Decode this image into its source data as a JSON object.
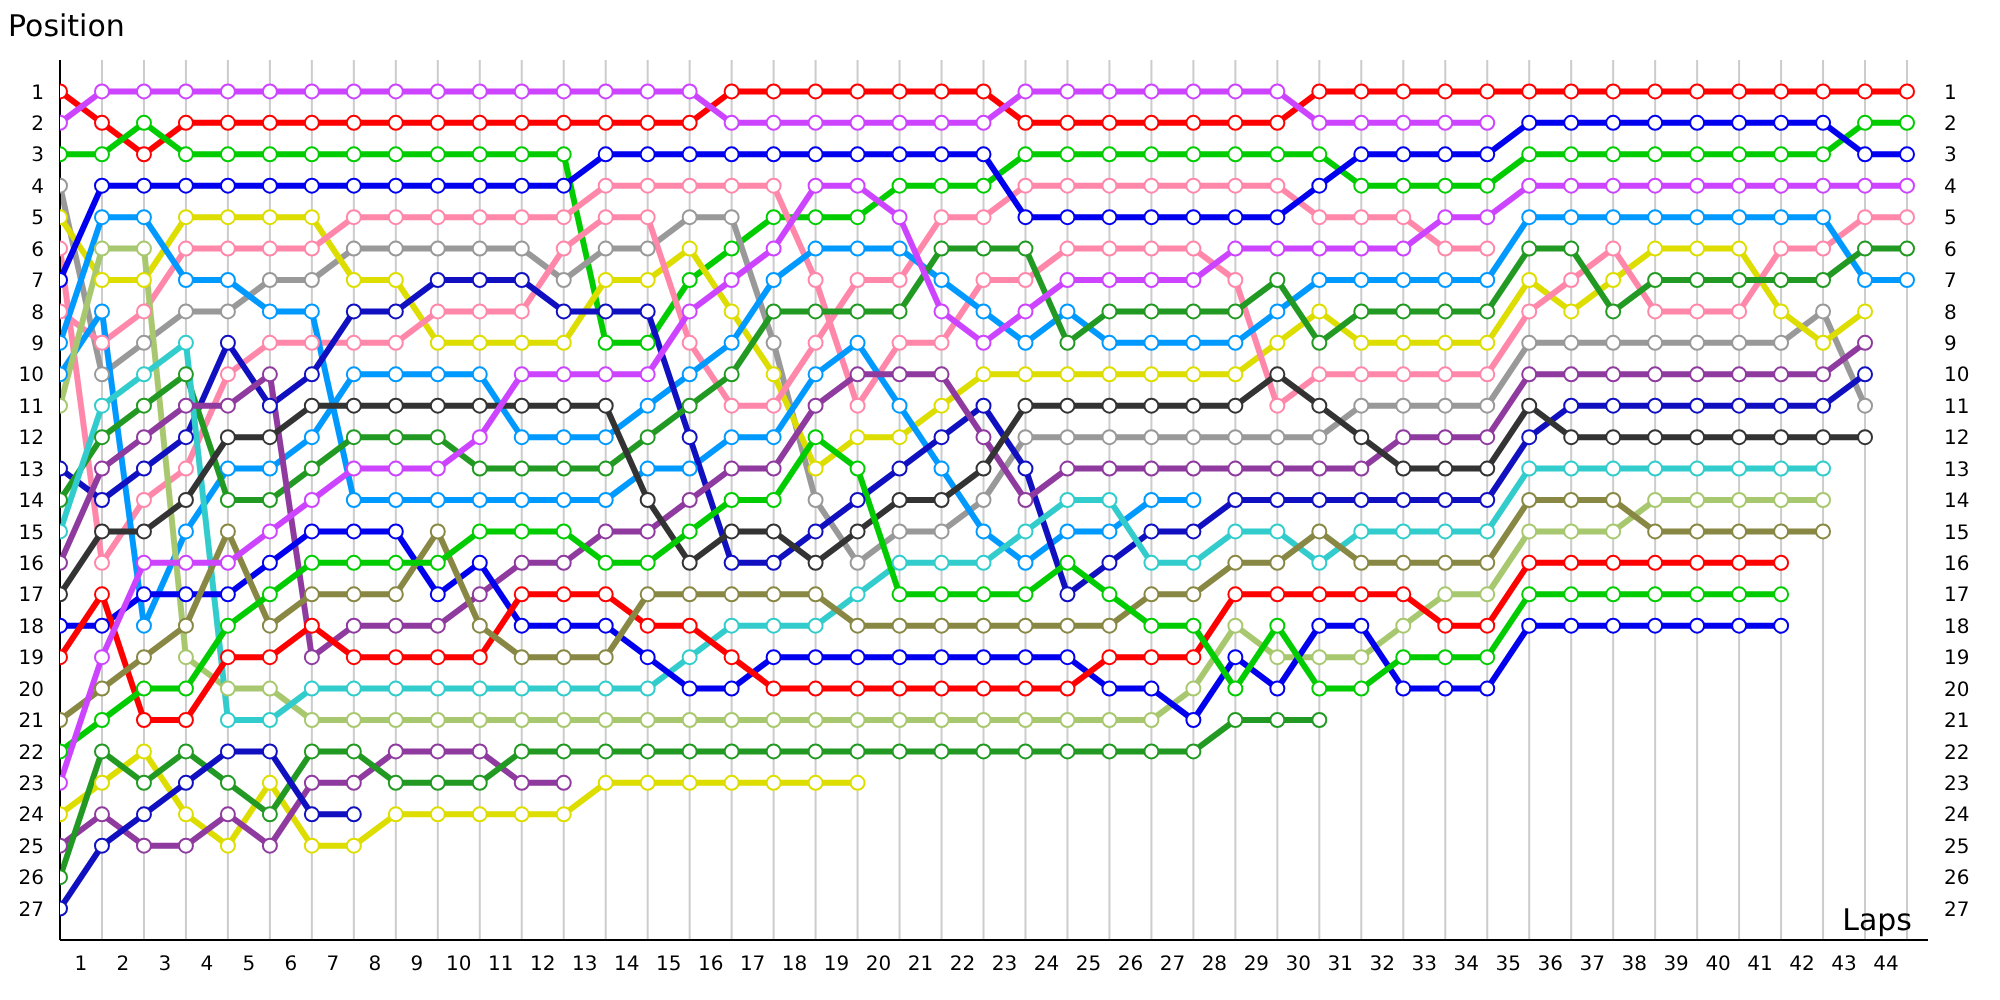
{
  "chart_data": {
    "type": "line",
    "xlabel": "Laps",
    "ylabel": "Position",
    "marker": "circle",
    "line_style": "solid",
    "grid": true,
    "x": [
      0,
      1,
      2,
      3,
      4,
      5,
      6,
      7,
      8,
      9,
      10,
      11,
      12,
      13,
      14,
      15,
      16,
      17,
      18,
      19,
      20,
      21,
      22,
      23,
      24,
      25,
      26,
      27,
      28,
      29,
      30,
      31,
      32,
      33,
      34,
      35,
      36,
      37,
      38,
      39,
      40,
      41,
      42,
      43,
      44
    ],
    "xlim": [
      0,
      44.5
    ],
    "xticks": [
      {
        "value": 0,
        "label": null
      },
      {
        "value": 0.5,
        "label": "1"
      },
      {
        "value": 1,
        "label": null
      },
      {
        "value": 1.5,
        "label": "2"
      },
      {
        "value": 2,
        "label": null
      },
      {
        "value": 2.5,
        "label": "3"
      },
      {
        "value": 3,
        "label": null
      },
      {
        "value": 3.5,
        "label": "4"
      },
      {
        "value": 4,
        "label": null
      },
      {
        "value": 4.5,
        "label": "5"
      },
      {
        "value": 5,
        "label": null
      },
      {
        "value": 5.5,
        "label": "6"
      },
      {
        "value": 6,
        "label": null
      },
      {
        "value": 6.5,
        "label": "7"
      },
      {
        "value": 7,
        "label": null
      },
      {
        "value": 7.5,
        "label": "8"
      },
      {
        "value": 8,
        "label": null
      },
      {
        "value": 8.5,
        "label": "9"
      },
      {
        "value": 9,
        "label": null
      },
      {
        "value": 9.5,
        "label": "10"
      },
      {
        "value": 10,
        "label": null
      },
      {
        "value": 10.5,
        "label": "11"
      },
      {
        "value": 11,
        "label": null
      },
      {
        "value": 11.5,
        "label": "12"
      },
      {
        "value": 12,
        "label": null
      },
      {
        "value": 12.5,
        "label": "13"
      },
      {
        "value": 13,
        "label": null
      },
      {
        "value": 13.5,
        "label": "14"
      },
      {
        "value": 14,
        "label": null
      },
      {
        "value": 14.5,
        "label": "15"
      },
      {
        "value": 15,
        "label": null
      },
      {
        "value": 15.5,
        "label": "16"
      },
      {
        "value": 16,
        "label": null
      },
      {
        "value": 16.5,
        "label": "17"
      },
      {
        "value": 17,
        "label": null
      },
      {
        "value": 17.5,
        "label": "18"
      },
      {
        "value": 18,
        "label": null
      },
      {
        "value": 18.5,
        "label": "19"
      },
      {
        "value": 19,
        "label": null
      },
      {
        "value": 19.5,
        "label": "20"
      },
      {
        "value": 20,
        "label": null
      },
      {
        "value": 20.5,
        "label": "21"
      },
      {
        "value": 21,
        "label": null
      },
      {
        "value": 21.5,
        "label": "22"
      },
      {
        "value": 22,
        "label": null
      },
      {
        "value": 22.5,
        "label": "23"
      },
      {
        "value": 23,
        "label": null
      },
      {
        "value": 23.5,
        "label": "24"
      },
      {
        "value": 24,
        "label": null
      },
      {
        "value": 24.5,
        "label": "25"
      },
      {
        "value": 25,
        "label": null
      },
      {
        "value": 25.5,
        "label": "26"
      },
      {
        "value": 26,
        "label": null
      },
      {
        "value": 26.5,
        "label": "27"
      },
      {
        "value": 27,
        "label": null
      },
      {
        "value": 27.5,
        "label": "28"
      },
      {
        "value": 28,
        "label": null
      },
      {
        "value": 28.5,
        "label": "29"
      },
      {
        "value": 29,
        "label": null
      },
      {
        "value": 29.5,
        "label": "30"
      },
      {
        "value": 30,
        "label": null
      },
      {
        "value": 30.5,
        "label": "31"
      },
      {
        "value": 31,
        "label": null
      },
      {
        "value": 31.5,
        "label": "32"
      },
      {
        "value": 32,
        "label": null
      },
      {
        "value": 32.5,
        "label": "33"
      },
      {
        "value": 33,
        "label": null
      },
      {
        "value": 33.5,
        "label": "34"
      },
      {
        "value": 34,
        "label": null
      },
      {
        "value": 34.5,
        "label": "35"
      },
      {
        "value": 35,
        "label": null
      },
      {
        "value": 35.5,
        "label": "36"
      },
      {
        "value": 36,
        "label": null
      },
      {
        "value": 36.5,
        "label": "37"
      },
      {
        "value": 37,
        "label": null
      },
      {
        "value": 37.5,
        "label": "38"
      },
      {
        "value": 38,
        "label": null
      },
      {
        "value": 38.5,
        "label": "39"
      },
      {
        "value": 39,
        "label": null
      },
      {
        "value": 39.5,
        "label": "40"
      },
      {
        "value": 40,
        "label": null
      },
      {
        "value": 40.5,
        "label": "41"
      },
      {
        "value": 41,
        "label": null
      },
      {
        "value": 41.5,
        "label": "42"
      },
      {
        "value": 42,
        "label": null
      },
      {
        "value": 42.5,
        "label": "43"
      },
      {
        "value": 43,
        "label": null
      },
      {
        "value": 43.5,
        "label": "44"
      },
      {
        "value": 44,
        "label": null
      }
    ],
    "ylim": [
      28,
      0
    ],
    "yticks": [
      1,
      2,
      3,
      4,
      5,
      6,
      7,
      8,
      9,
      10,
      11,
      12,
      13,
      14,
      15,
      16,
      17,
      18,
      19,
      20,
      21,
      22,
      23,
      24,
      25,
      26,
      27
    ],
    "y2lim": [
      28,
      0
    ],
    "y2ticks": [
      1,
      2,
      3,
      4,
      5,
      6,
      7,
      8,
      9,
      10,
      11,
      12,
      13,
      14,
      15,
      16,
      17,
      18,
      19,
      20,
      21,
      22,
      23,
      24,
      25,
      26,
      27
    ],
    "series": [
      {
        "color": "#ff0000",
        "values": [
          1,
          2,
          3,
          2,
          2,
          2,
          2,
          2,
          2,
          2,
          2,
          2,
          2,
          2,
          2,
          2,
          1,
          1,
          1,
          1,
          1,
          1,
          1,
          2,
          2,
          2,
          2,
          2,
          2,
          2,
          1,
          1,
          1,
          1,
          1,
          1,
          1,
          1,
          1,
          1,
          1,
          1,
          1,
          1,
          1
        ]
      },
      {
        "color": "#cc44ff",
        "values": [
          2,
          1,
          1,
          1,
          1,
          1,
          1,
          1,
          1,
          1,
          1,
          1,
          1,
          1,
          1,
          1,
          2,
          2,
          2,
          2,
          2,
          2,
          2,
          1,
          1,
          1,
          1,
          1,
          1,
          1,
          2,
          2,
          2,
          2,
          2,
          null,
          null,
          null,
          null,
          null,
          null,
          null,
          null,
          null,
          null
        ]
      },
      {
        "color": "#00cc00",
        "values": [
          3,
          3,
          2,
          3,
          3,
          3,
          3,
          3,
          3,
          3,
          3,
          3,
          3,
          9,
          9,
          7,
          6,
          5,
          5,
          5,
          4,
          4,
          4,
          3,
          3,
          3,
          3,
          3,
          3,
          3,
          3,
          4,
          4,
          4,
          4,
          3,
          3,
          3,
          3,
          3,
          3,
          3,
          3,
          2,
          2
        ]
      },
      {
        "color": "#999999",
        "values": [
          4,
          10,
          9,
          8,
          8,
          7,
          7,
          6,
          6,
          6,
          6,
          6,
          7,
          6,
          6,
          5,
          5,
          9,
          14,
          16,
          15,
          15,
          14,
          12,
          12,
          12,
          12,
          12,
          12,
          12,
          12,
          11,
          11,
          11,
          11,
          9,
          9,
          9,
          9,
          9,
          9,
          9,
          8,
          11,
          null
        ]
      },
      {
        "color": "#dddd00",
        "values": [
          5,
          7,
          7,
          5,
          5,
          5,
          5,
          7,
          7,
          9,
          9,
          9,
          9,
          7,
          7,
          6,
          8,
          10,
          13,
          12,
          12,
          11,
          10,
          10,
          10,
          10,
          10,
          10,
          10,
          9,
          8,
          9,
          9,
          9,
          9,
          7,
          8,
          7,
          6,
          6,
          6,
          8,
          9,
          8,
          null
        ]
      },
      {
        "color": "#ff88aa",
        "values": [
          6,
          16,
          14,
          13,
          10,
          9,
          9,
          9,
          9,
          8,
          8,
          8,
          6,
          5,
          5,
          9,
          11,
          11,
          9,
          7,
          7,
          5,
          5,
          4,
          4,
          4,
          4,
          4,
          4,
          4,
          5,
          5,
          5,
          6,
          6,
          null,
          null,
          null,
          null,
          null,
          null,
          null,
          null,
          null,
          null
        ]
      },
      {
        "color": "#0000ee",
        "values": [
          7,
          4,
          4,
          4,
          4,
          4,
          4,
          4,
          4,
          4,
          4,
          4,
          4,
          3,
          3,
          3,
          3,
          3,
          3,
          3,
          3,
          3,
          3,
          5,
          5,
          5,
          5,
          5,
          5,
          5,
          4,
          3,
          3,
          3,
          3,
          2,
          2,
          2,
          2,
          2,
          2,
          2,
          2,
          3,
          3
        ]
      },
      {
        "color": "#ff88aa",
        "values": [
          8,
          9,
          8,
          6,
          6,
          6,
          6,
          5,
          5,
          5,
          5,
          5,
          5,
          4,
          4,
          4,
          4,
          4,
          7,
          11,
          9,
          9,
          7,
          7,
          6,
          6,
          6,
          6,
          7,
          11,
          10,
          10,
          10,
          10,
          10,
          8,
          7,
          6,
          8,
          8,
          8,
          6,
          6,
          5,
          5
        ]
      },
      {
        "color": "#0099ff",
        "values": [
          9,
          5,
          5,
          7,
          7,
          8,
          8,
          14,
          14,
          14,
          14,
          14,
          14,
          14,
          13,
          13,
          12,
          12,
          10,
          9,
          11,
          13,
          15,
          16,
          15,
          15,
          14,
          14,
          null,
          null,
          null,
          null,
          null,
          null,
          null,
          null,
          null,
          null,
          null,
          null,
          null,
          null,
          null,
          null,
          null
        ]
      },
      {
        "color": "#0099ff",
        "values": [
          10,
          8,
          18,
          15,
          13,
          13,
          12,
          10,
          10,
          10,
          10,
          12,
          12,
          12,
          11,
          10,
          9,
          7,
          6,
          6,
          6,
          7,
          8,
          9,
          8,
          9,
          9,
          9,
          9,
          8,
          7,
          7,
          7,
          7,
          7,
          5,
          5,
          5,
          5,
          5,
          5,
          5,
          5,
          7,
          7
        ]
      },
      {
        "color": "#a8c870",
        "values": [
          11,
          6,
          6,
          19,
          20,
          20,
          21,
          21,
          21,
          21,
          21,
          21,
          21,
          21,
          21,
          21,
          21,
          21,
          21,
          21,
          21,
          21,
          21,
          21,
          21,
          21,
          21,
          20,
          18,
          19,
          19,
          19,
          18,
          17,
          17,
          15,
          15,
          15,
          14,
          14,
          14,
          14,
          14,
          null,
          null
        ]
      },
      {
        "color": "#1010c0",
        "values": [
          13,
          14,
          13,
          12,
          9,
          11,
          10,
          8,
          8,
          7,
          7,
          7,
          8,
          8,
          8,
          12,
          16,
          16,
          15,
          14,
          13,
          12,
          11,
          13,
          17,
          16,
          15,
          15,
          14,
          14,
          14,
          14,
          14,
          14,
          14,
          12,
          11,
          11,
          11,
          11,
          11,
          11,
          11,
          10,
          null
        ]
      },
      {
        "color": "#229922",
        "values": [
          14,
          12,
          11,
          10,
          14,
          14,
          13,
          12,
          12,
          12,
          13,
          13,
          13,
          13,
          12,
          11,
          10,
          8,
          8,
          8,
          8,
          6,
          6,
          6,
          9,
          8,
          8,
          8,
          8,
          7,
          9,
          8,
          8,
          8,
          8,
          6,
          6,
          8,
          7,
          7,
          7,
          7,
          7,
          6,
          6
        ]
      },
      {
        "color": "#33cccc",
        "values": [
          15,
          11,
          10,
          9,
          21,
          21,
          20,
          20,
          20,
          20,
          20,
          20,
          20,
          20,
          20,
          19,
          18,
          18,
          18,
          17,
          16,
          16,
          16,
          15,
          14,
          14,
          16,
          16,
          15,
          15,
          16,
          15,
          15,
          15,
          15,
          13,
          13,
          13,
          13,
          13,
          13,
          13,
          13,
          null,
          null
        ]
      },
      {
        "color": "#8e3a9e",
        "values": [
          16,
          13,
          12,
          11,
          11,
          10,
          19,
          18,
          18,
          18,
          17,
          16,
          16,
          15,
          15,
          14,
          13,
          13,
          11,
          10,
          10,
          10,
          12,
          14,
          13,
          13,
          13,
          13,
          13,
          13,
          13,
          13,
          12,
          12,
          12,
          10,
          10,
          10,
          10,
          10,
          10,
          10,
          10,
          9,
          null
        ]
      },
      {
        "color": "#333333",
        "values": [
          17,
          15,
          15,
          14,
          12,
          12,
          11,
          11,
          11,
          11,
          11,
          11,
          11,
          11,
          14,
          16,
          15,
          15,
          16,
          15,
          14,
          14,
          13,
          11,
          11,
          11,
          11,
          11,
          11,
          10,
          11,
          12,
          13,
          13,
          13,
          11,
          12,
          12,
          12,
          12,
          12,
          12,
          12,
          12,
          null
        ]
      },
      {
        "color": "#0000ee",
        "values": [
          18,
          18,
          17,
          17,
          17,
          16,
          15,
          15,
          15,
          17,
          16,
          18,
          18,
          18,
          19,
          20,
          20,
          19,
          19,
          19,
          19,
          19,
          19,
          19,
          19,
          20,
          20,
          21,
          19,
          20,
          18,
          18,
          20,
          20,
          20,
          18,
          18,
          18,
          18,
          18,
          18,
          18,
          null,
          null,
          null
        ]
      },
      {
        "color": "#ff0000",
        "values": [
          19,
          17,
          21,
          21,
          19,
          19,
          18,
          19,
          19,
          19,
          19,
          17,
          17,
          17,
          18,
          18,
          19,
          20,
          20,
          20,
          20,
          20,
          20,
          20,
          20,
          19,
          19,
          19,
          17,
          17,
          17,
          17,
          17,
          18,
          18,
          16,
          16,
          16,
          16,
          16,
          16,
          16,
          null,
          null,
          null
        ]
      },
      {
        "color": "#888844",
        "values": [
          21,
          20,
          19,
          18,
          15,
          18,
          17,
          17,
          17,
          15,
          18,
          19,
          19,
          19,
          17,
          17,
          17,
          17,
          17,
          18,
          18,
          18,
          18,
          18,
          18,
          18,
          17,
          17,
          16,
          16,
          15,
          16,
          16,
          16,
          16,
          14,
          14,
          14,
          15,
          15,
          15,
          15,
          15,
          null,
          null
        ]
      },
      {
        "color": "#00cc00",
        "values": [
          22,
          21,
          20,
          20,
          18,
          17,
          16,
          16,
          16,
          16,
          15,
          15,
          15,
          16,
          16,
          15,
          14,
          14,
          12,
          13,
          17,
          17,
          17,
          17,
          16,
          17,
          18,
          18,
          20,
          18,
          20,
          20,
          19,
          19,
          19,
          17,
          17,
          17,
          17,
          17,
          17,
          17,
          null,
          null,
          null
        ]
      },
      {
        "color": "#cc44ff",
        "values": [
          23,
          19,
          16,
          16,
          16,
          15,
          14,
          13,
          13,
          13,
          12,
          10,
          10,
          10,
          10,
          8,
          7,
          6,
          4,
          4,
          5,
          8,
          9,
          8,
          7,
          7,
          7,
          7,
          6,
          6,
          6,
          6,
          6,
          5,
          5,
          4,
          4,
          4,
          4,
          4,
          4,
          4,
          4,
          4,
          4
        ]
      },
      {
        "color": "#dddd00",
        "values": [
          24,
          23,
          22,
          24,
          25,
          23,
          25,
          25,
          24,
          24,
          24,
          24,
          24,
          23,
          23,
          23,
          23,
          23,
          23,
          23,
          null,
          null,
          null,
          null,
          null,
          null,
          null,
          null,
          null,
          null,
          null,
          null,
          null,
          null,
          null,
          null,
          null,
          null,
          null,
          null,
          null,
          null,
          null,
          null,
          null
        ]
      },
      {
        "color": "#8e3a9e",
        "values": [
          25,
          24,
          25,
          25,
          24,
          25,
          23,
          23,
          22,
          22,
          22,
          23,
          23,
          null,
          null,
          null,
          null,
          null,
          null,
          null,
          null,
          null,
          null,
          null,
          null,
          null,
          null,
          null,
          null,
          null,
          null,
          null,
          null,
          null,
          null,
          null,
          null,
          null,
          null,
          null,
          null,
          null,
          null,
          null,
          null
        ]
      },
      {
        "color": "#229922",
        "values": [
          26,
          22,
          23,
          22,
          23,
          24,
          22,
          22,
          23,
          23,
          23,
          22,
          22,
          22,
          22,
          22,
          22,
          22,
          22,
          22,
          22,
          22,
          22,
          22,
          22,
          22,
          22,
          22,
          21,
          21,
          21,
          null,
          null,
          null,
          null,
          null,
          null,
          null,
          null,
          null,
          null,
          null,
          null,
          null,
          null
        ]
      },
      {
        "color": "#1010c0",
        "values": [
          27,
          25,
          24,
          23,
          22,
          22,
          24,
          24,
          null,
          null,
          null,
          null,
          null,
          null,
          null,
          null,
          null,
          null,
          null,
          null,
          null,
          null,
          null,
          null,
          null,
          null,
          null,
          null,
          null,
          null,
          null,
          null,
          null,
          null,
          null,
          null,
          null,
          null,
          null,
          null,
          null,
          null,
          null,
          null,
          null
        ]
      }
    ]
  }
}
